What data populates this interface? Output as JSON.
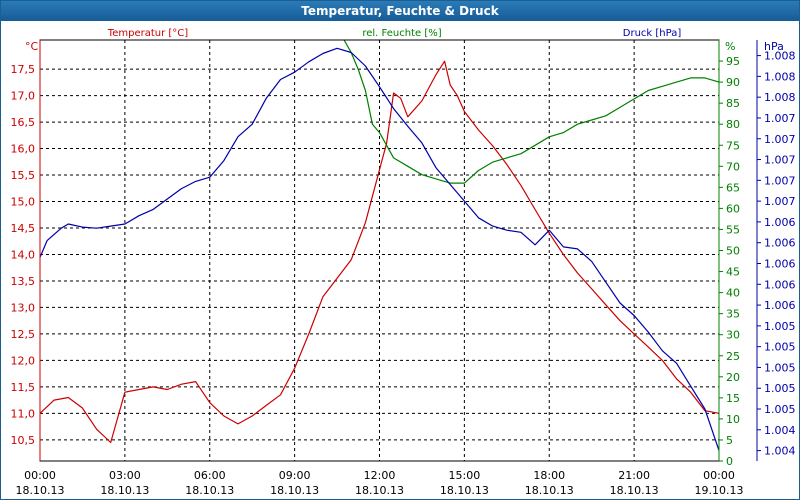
{
  "window_title": "Temperatur, Feuchte & Druck",
  "colors": {
    "temperature": "#cc0000",
    "humidity": "#008000",
    "pressure": "#0000aa",
    "frame": "#1b5e8f",
    "grid": "#000000"
  },
  "chart_data": {
    "type": "line",
    "title": "Temperatur, Feuchte & Druck",
    "grid": true,
    "x_ticks": [
      {
        "time": "00:00",
        "date": "18.10.13"
      },
      {
        "time": "03:00",
        "date": "18.10.13"
      },
      {
        "time": "06:00",
        "date": "18.10.13"
      },
      {
        "time": "09:00",
        "date": "18.10.13"
      },
      {
        "time": "12:00",
        "date": "18.10.13"
      },
      {
        "time": "15:00",
        "date": "18.10.13"
      },
      {
        "time": "18:00",
        "date": "18.10.13"
      },
      {
        "time": "21:00",
        "date": "18.10.13"
      },
      {
        "time": "00:00",
        "date": "19.10.13"
      }
    ],
    "xlim": [
      0,
      24
    ],
    "left_axis": {
      "label": "Temperatur [°C]",
      "unit": "°C",
      "min": 10.1,
      "max": 18.05,
      "ticks": [
        "10,5",
        "11,0",
        "11,5",
        "12,0",
        "12,5",
        "13,0",
        "13,5",
        "14,0",
        "14,5",
        "15,0",
        "15,5",
        "16,0",
        "16,5",
        "17,0",
        "17,5"
      ],
      "tick_values": [
        10.5,
        11.0,
        11.5,
        12.0,
        12.5,
        13.0,
        13.5,
        14.0,
        14.5,
        15.0,
        15.5,
        16.0,
        16.5,
        17.0,
        17.5
      ]
    },
    "mid_axis": {
      "label": "rel. Feuchte [%]",
      "unit": "%",
      "min": 0,
      "max": 100,
      "ticks": [
        "0",
        "5",
        "10",
        "15",
        "20",
        "25",
        "30",
        "35",
        "40",
        "45",
        "50",
        "55",
        "60",
        "65",
        "70",
        "75",
        "80",
        "85",
        "90",
        "95"
      ],
      "tick_values": [
        0,
        5,
        10,
        15,
        20,
        25,
        30,
        35,
        40,
        45,
        50,
        55,
        60,
        65,
        70,
        75,
        80,
        85,
        90,
        95
      ]
    },
    "right_axis": {
      "label": "Druck [hPa]",
      "unit": "hPa",
      "ticks": [
        "1.004",
        "1.004",
        "1.005",
        "1.005",
        "1.005",
        "1.005",
        "1.005",
        "1.006",
        "1.006",
        "1.006",
        "1.006",
        "1.006",
        "1.007",
        "1.007",
        "1.007",
        "1.007",
        "1.007",
        "1.008",
        "1.008",
        "1.008"
      ],
      "tick_values": [
        1003.91,
        1004.11,
        1004.31,
        1004.51,
        1004.71,
        1004.91,
        1005.11,
        1005.31,
        1005.51,
        1005.71,
        1005.91,
        1006.11,
        1006.31,
        1006.51,
        1006.71,
        1006.91,
        1007.11,
        1007.31,
        1007.51,
        1007.71
      ],
      "min": 1003.81,
      "max": 1007.86
    },
    "series": [
      {
        "name": "Temperatur [°C]",
        "axis": "left",
        "color": "#cc0000",
        "x": [
          0,
          0.5,
          1,
          1.5,
          2,
          2.5,
          3,
          3.5,
          4,
          4.5,
          5,
          5.5,
          6,
          6.5,
          7,
          7.5,
          8,
          8.5,
          9,
          9.5,
          10,
          10.5,
          11,
          11.5,
          12,
          12.25,
          12.5,
          12.75,
          13,
          13.5,
          14,
          14.3,
          14.5,
          14.75,
          15,
          15.5,
          16,
          16.5,
          17,
          17.5,
          18,
          18.5,
          19,
          19.5,
          20,
          20.5,
          21,
          21.5,
          22,
          22.5,
          23,
          23.5,
          24
        ],
        "values": [
          11.0,
          11.25,
          11.3,
          11.1,
          10.7,
          10.45,
          11.4,
          11.45,
          11.5,
          11.45,
          11.55,
          11.6,
          11.2,
          10.95,
          10.8,
          10.95,
          11.15,
          11.35,
          11.85,
          12.5,
          13.2,
          13.55,
          13.9,
          14.6,
          15.6,
          16.1,
          17.05,
          16.95,
          16.6,
          16.9,
          17.4,
          17.65,
          17.2,
          17.0,
          16.7,
          16.35,
          16.05,
          15.7,
          15.3,
          14.85,
          14.4,
          14.0,
          13.65,
          13.35,
          13.05,
          12.75,
          12.5,
          12.25,
          12.0,
          11.65,
          11.4,
          11.05,
          11.0
        ]
      },
      {
        "name": "rel. Feuchte [%]",
        "axis": "mid",
        "color": "#008000",
        "x": [
          10.75,
          11,
          11.25,
          11.5,
          11.75,
          12,
          12.5,
          13,
          13.5,
          14,
          14.5,
          15,
          15.5,
          16,
          16.5,
          17,
          17.5,
          18,
          18.5,
          19,
          19.5,
          20,
          20.5,
          21,
          21.5,
          22,
          22.5,
          23,
          23.5,
          24
        ],
        "values": [
          100,
          97,
          93,
          88,
          80,
          78,
          72,
          70,
          68,
          67,
          66,
          66,
          69,
          71,
          72,
          73,
          75,
          77,
          78,
          80,
          81,
          82,
          84,
          86,
          88,
          89,
          90,
          91,
          91,
          90
        ]
      },
      {
        "name": "Druck [hPa]",
        "axis": "right",
        "color": "#0000aa",
        "x": [
          0,
          0.25,
          0.75,
          1,
          1.5,
          2,
          2.5,
          3,
          3.5,
          4,
          4.5,
          5,
          5.5,
          6,
          6.5,
          7,
          7.5,
          8,
          8.5,
          9,
          9.5,
          10,
          10.5,
          11,
          11.5,
          12,
          12.5,
          13,
          13.5,
          14,
          14.5,
          15,
          15.5,
          16,
          16.5,
          17,
          17.5,
          18,
          18.5,
          19,
          19.5,
          20,
          20.5,
          21,
          21.5,
          22,
          22.5,
          23,
          23.5,
          24
        ],
        "values": [
          1005.77,
          1005.93,
          1006.05,
          1006.09,
          1006.06,
          1006.05,
          1006.07,
          1006.09,
          1006.17,
          1006.23,
          1006.33,
          1006.43,
          1006.5,
          1006.54,
          1006.7,
          1006.93,
          1007.05,
          1007.3,
          1007.48,
          1007.55,
          1007.65,
          1007.73,
          1007.78,
          1007.74,
          1007.61,
          1007.41,
          1007.2,
          1007.03,
          1006.87,
          1006.63,
          1006.47,
          1006.31,
          1006.15,
          1006.07,
          1006.03,
          1006.01,
          1005.89,
          1006.03,
          1005.87,
          1005.85,
          1005.73,
          1005.53,
          1005.33,
          1005.21,
          1005.05,
          1004.87,
          1004.75,
          1004.53,
          1004.31,
          1003.91
        ]
      }
    ]
  }
}
